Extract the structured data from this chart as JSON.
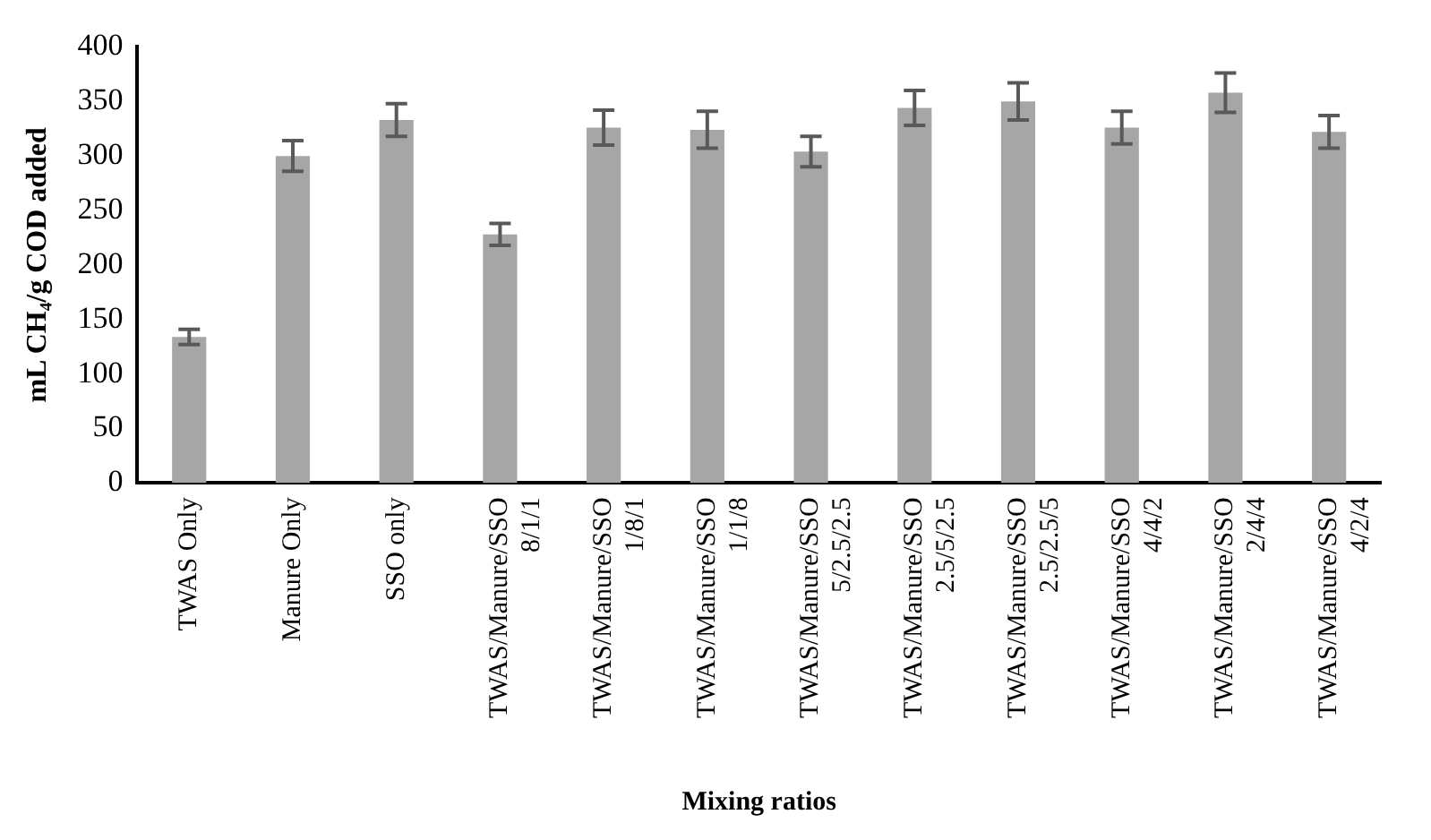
{
  "chart_data": {
    "type": "bar",
    "xlabel": "Mixing ratios",
    "ylabel": "mL CH₄/g COD added",
    "categories": [
      "TWAS Only",
      "Manure Only",
      "SSO only",
      "TWAS/Manure/SSO 8/1/1",
      "TWAS/Manure/SSO 1/8/1",
      "TWAS/Manure/SSO 1/1/8",
      "TWAS/Manure/SSO 5/2.5/2.5",
      "TWAS/Manure/SSO 2.5/5/2.5",
      "TWAS/Manure/SSO 2.5/2.5/5",
      "TWAS/Manure/SSO 4/4/2",
      "TWAS/Manure/SSO 2/4/4",
      "TWAS/Manure/SSO 4/2/4"
    ],
    "values": [
      134,
      300,
      333,
      228,
      326,
      324,
      304,
      344,
      350,
      326,
      358,
      322
    ],
    "errors": [
      7,
      14,
      15,
      10,
      16,
      17,
      14,
      16,
      17,
      15,
      18,
      15
    ],
    "color": "#a6a6a6",
    "ylim": [
      0,
      400
    ],
    "yticks": [
      0,
      50,
      100,
      150,
      200,
      250,
      300,
      350,
      400
    ],
    "grid": false,
    "legend": false
  }
}
